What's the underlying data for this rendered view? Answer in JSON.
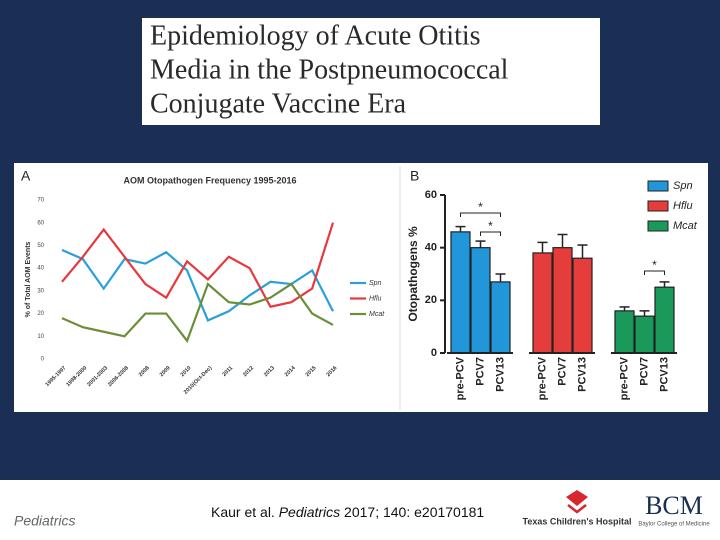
{
  "slide": {
    "title_lines": [
      "Epidemiology of Acute Otitis",
      "Media in the Postpneumococcal",
      "Conjugate Vaccine Era"
    ]
  },
  "chart_data": [
    {
      "type": "line",
      "panel": "A",
      "title": "AOM Otopathogen Frequency 1995-2016",
      "y_label": "% of Total AOM Events",
      "categories": [
        "1995-1997",
        "1998-2000",
        "2001-2003",
        "2006-2008",
        "2008",
        "2009",
        "2010",
        "2010(Oct-Dec)",
        "2011",
        "2012",
        "2013",
        "2014",
        "2015",
        "2016"
      ],
      "series": [
        {
          "name": "Spn",
          "color": "#2aa0da",
          "values": [
            48,
            44,
            31,
            44,
            42,
            47,
            39,
            17,
            21,
            28,
            34,
            33,
            39,
            21
          ]
        },
        {
          "name": "Hflu",
          "color": "#e8383d",
          "values": [
            34,
            45,
            57,
            45,
            33,
            27,
            43,
            35,
            45,
            40,
            23,
            25,
            31,
            60
          ]
        },
        {
          "name": "Mcat",
          "color": "#6b8e3a",
          "values": [
            18,
            14,
            12,
            10,
            20,
            20,
            8,
            33,
            25,
            24,
            27,
            33,
            20,
            15
          ]
        }
      ],
      "ylim": [
        0,
        70
      ],
      "yticks": [
        0,
        10,
        20,
        30,
        40,
        50,
        60,
        70
      ],
      "grid": false,
      "legend": "right"
    },
    {
      "type": "grouped-bar",
      "panel": "B",
      "y_label": "Otopathogens %",
      "categories": [
        "pre-PCV",
        "PCV7",
        "PCV13"
      ],
      "series": [
        {
          "name": "Spn",
          "color": "#2196d8",
          "values": [
            46,
            40,
            27
          ],
          "errors": [
            2,
            2.5,
            3
          ]
        },
        {
          "name": "Hflu",
          "color": "#e53c3c",
          "values": [
            38,
            40,
            36
          ],
          "errors": [
            4,
            5,
            5
          ]
        },
        {
          "name": "Mcat",
          "color": "#1a9a5a",
          "values": [
            16,
            14,
            25
          ],
          "errors": [
            1.5,
            2,
            2
          ]
        }
      ],
      "annotations": [
        "*",
        "*",
        "*"
      ],
      "ylim": [
        0,
        60
      ],
      "yticks": [
        0,
        20,
        40,
        60
      ],
      "legend": "top-right"
    }
  ],
  "footer": {
    "journal": "Pediatrics",
    "citation": [
      "Kaur et al. ",
      "Pediatrics",
      " 2017; 140: e20170181"
    ],
    "logo_tch": "Texas Children's Hospital",
    "logo_bcm": "BCM",
    "logo_bcm_sub": "Baylor College of Medicine"
  }
}
